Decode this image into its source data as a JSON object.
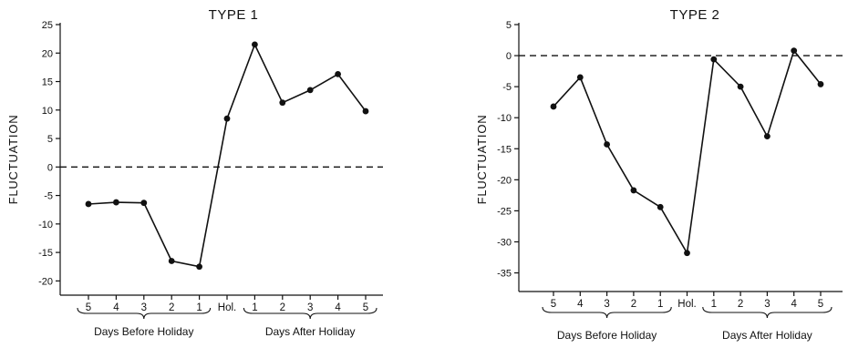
{
  "chart_data": [
    {
      "type": "line",
      "title": "TYPE 1",
      "ylabel": "FLUCTUATION",
      "xlabel": "",
      "categories": [
        "5",
        "4",
        "3",
        "2",
        "1",
        "Hol.",
        "1",
        "2",
        "3",
        "4",
        "5"
      ],
      "values": [
        -6.5,
        -6.2,
        -6.3,
        -16.5,
        -17.5,
        8.5,
        21.5,
        11.3,
        13.5,
        16.3,
        9.8
      ],
      "ylim": [
        -22.5,
        25
      ],
      "yticks": [
        25,
        20,
        15,
        10,
        5,
        0,
        -5,
        -10,
        -15,
        -20
      ],
      "reference_line": 0,
      "groups": [
        {
          "label": "Days Before Holiday",
          "from": 0,
          "to": 4
        },
        {
          "label": "Days After Holiday",
          "from": 6,
          "to": 10
        }
      ],
      "grid": false
    },
    {
      "type": "line",
      "title": "TYPE 2",
      "ylabel": "FLUCTUATION",
      "xlabel": "",
      "categories": [
        "5",
        "4",
        "3",
        "2",
        "1",
        "Hol.",
        "1",
        "2",
        "3",
        "4",
        "5"
      ],
      "values": [
        -8.2,
        -3.5,
        -14.3,
        -21.7,
        -24.4,
        -31.8,
        -0.6,
        -5,
        -13,
        0.8,
        -4.6
      ],
      "ylim": [
        -38,
        5
      ],
      "yticks": [
        5,
        0,
        -5,
        -10,
        -15,
        -20,
        -25,
        -30,
        -35
      ],
      "reference_line": 0,
      "groups": [
        {
          "label": "Days Before Holiday",
          "from": 0,
          "to": 4
        },
        {
          "label": "Days After Holiday",
          "from": 6,
          "to": 10
        }
      ],
      "grid": false
    }
  ]
}
